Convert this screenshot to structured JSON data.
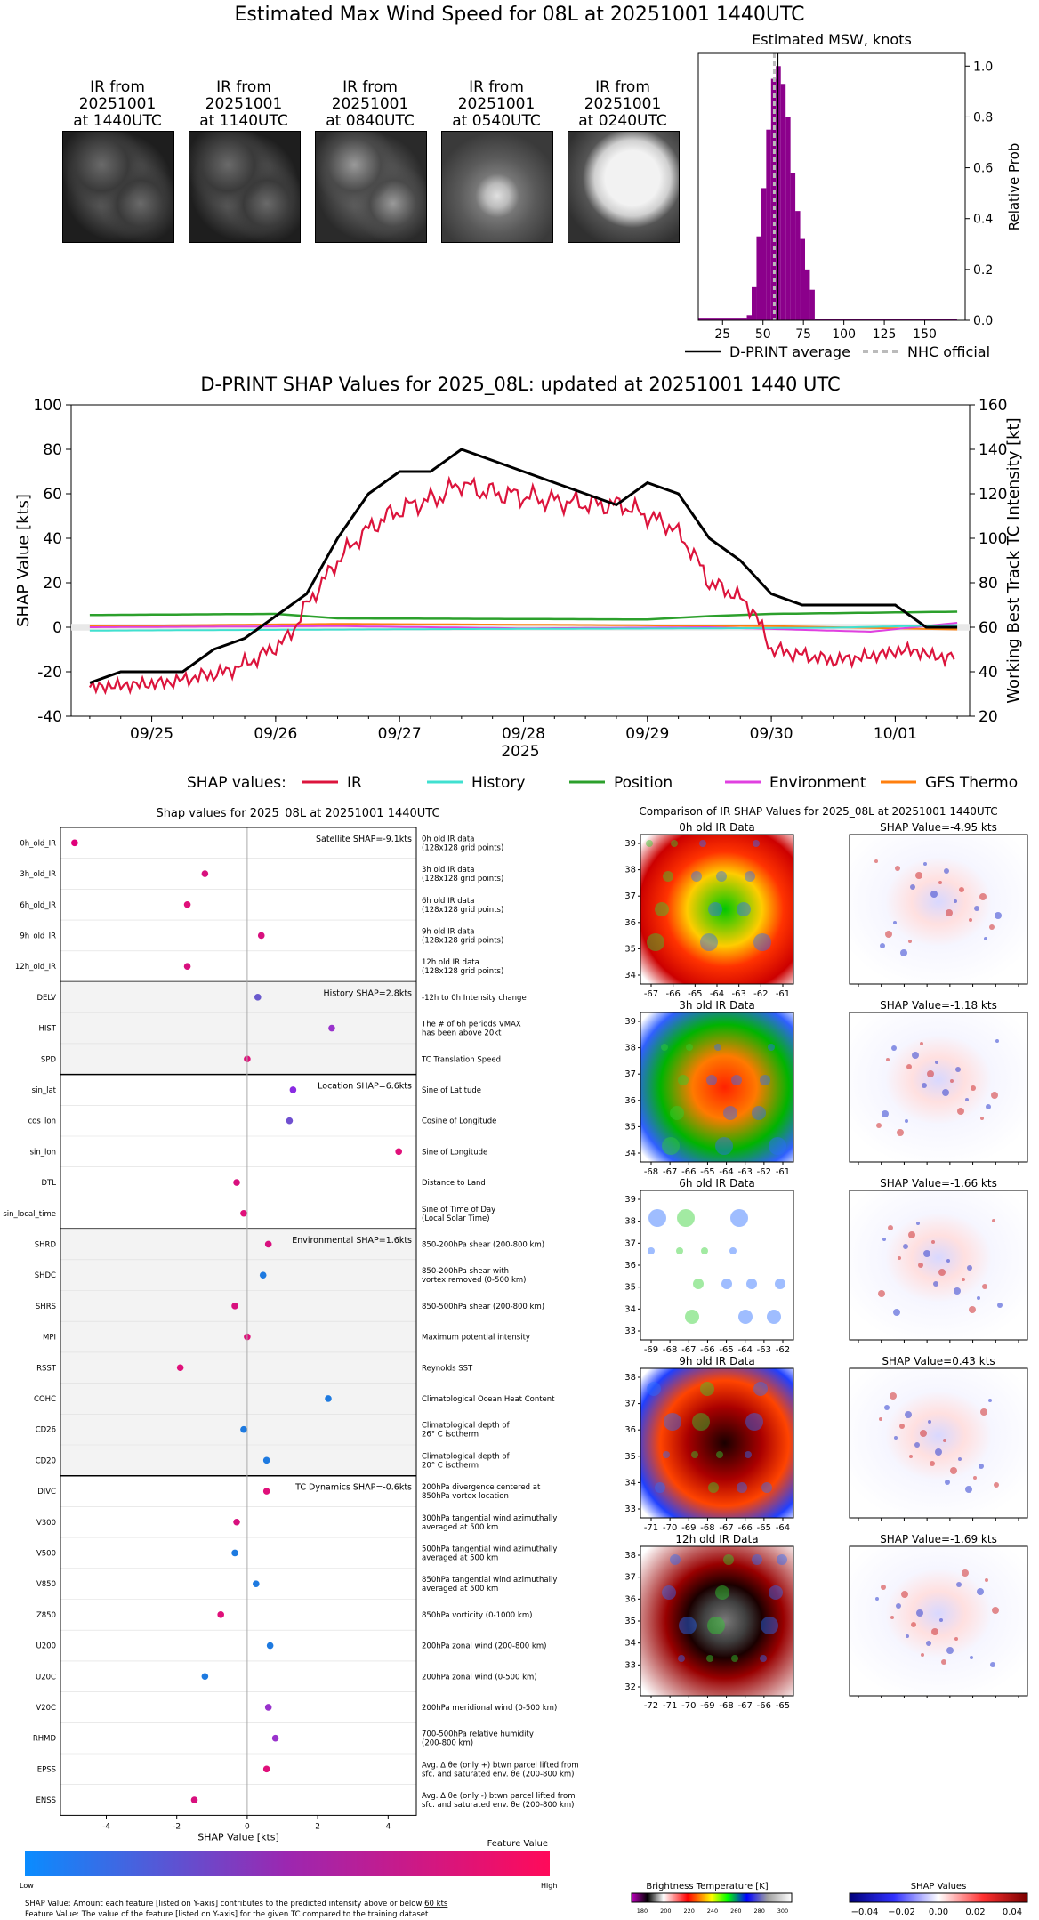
{
  "main_title": "Estimated Max Wind Speed for 08L at 20251001 1440UTC",
  "ir_panels": [
    {
      "title": "IR from\n20251001\nat 1440UTC",
      "tone": "dark"
    },
    {
      "title": "IR from\n20251001\nat 1140UTC",
      "tone": "dark"
    },
    {
      "title": "IR from\n20251001\nat 0840UTC",
      "tone": "mid"
    },
    {
      "title": "IR from\n20251001\nat 0540UTC",
      "tone": "light"
    },
    {
      "title": "IR from\n20251001\nat 0240UTC",
      "tone": "bright"
    }
  ],
  "msw_hist": {
    "title": "Estimated MSW, knots",
    "ylabel": "Relative Prob",
    "xticks": [
      "25",
      "50",
      "75",
      "100",
      "125",
      "150"
    ],
    "yticks": [
      "0.0",
      "0.2",
      "0.4",
      "0.6",
      "0.8",
      "1.0"
    ],
    "legend": {
      "dprint": "D-PRINT average",
      "nhc": "NHC official"
    },
    "bars": [
      [
        10,
        40,
        0.01
      ],
      [
        40,
        43,
        0.02
      ],
      [
        43,
        46,
        0.13
      ],
      [
        46,
        49,
        0.33
      ],
      [
        49,
        52,
        0.52
      ],
      [
        52,
        55,
        0.75
      ],
      [
        55,
        58,
        0.95
      ],
      [
        58,
        61,
        1.0
      ],
      [
        61,
        64,
        0.93
      ],
      [
        64,
        67,
        0.8
      ],
      [
        67,
        70,
        0.58
      ],
      [
        70,
        73,
        0.43
      ],
      [
        73,
        76,
        0.32
      ],
      [
        76,
        79,
        0.2
      ],
      [
        79,
        82,
        0.12
      ],
      [
        82,
        170,
        0.005
      ]
    ],
    "dprint_avg": 59,
    "nhc": 57,
    "xlim": [
      10,
      175
    ],
    "ylim": [
      0,
      1.05
    ]
  },
  "chart_data": {
    "type": "line",
    "title": "D-PRINT SHAP Values for 2025_08L: updated at 20251001 1440 UTC",
    "xlabel": "2025",
    "ylabel": "SHAP Value [kts]",
    "y2label": "Working Best Track TC Intensity [kt]",
    "xticks": [
      "09/25",
      "09/26",
      "09/27",
      "09/28",
      "09/29",
      "09/30",
      "10/01"
    ],
    "yticks": [
      "-40",
      "-20",
      "0",
      "20",
      "40",
      "60",
      "80",
      "100"
    ],
    "y2ticks": [
      "20",
      "40",
      "60",
      "80",
      "100",
      "120",
      "140",
      "160"
    ],
    "ylim": [
      -40,
      100
    ],
    "y2lim": [
      20,
      160
    ],
    "legend_label": "SHAP values:",
    "series": [
      {
        "name": "IR",
        "color": "#dc143c"
      },
      {
        "name": "History",
        "color": "#40e0d0"
      },
      {
        "name": "Position",
        "color": "#2ca02c"
      },
      {
        "name": "Environment",
        "color": "#e040e0"
      },
      {
        "name": "GFS Thermo",
        "color": "#ff7f0e"
      },
      {
        "name": "TC Intensity",
        "color": "#000000"
      }
    ],
    "tc_intensity": [
      [
        0,
        35
      ],
      [
        0.25,
        40
      ],
      [
        0.75,
        40
      ],
      [
        1,
        50
      ],
      [
        1.25,
        55
      ],
      [
        1.5,
        65
      ],
      [
        1.75,
        75
      ],
      [
        2,
        100
      ],
      [
        2.25,
        120
      ],
      [
        2.5,
        130
      ],
      [
        2.75,
        130
      ],
      [
        3,
        140
      ],
      [
        3.25,
        135
      ],
      [
        3.5,
        130
      ],
      [
        3.75,
        125
      ],
      [
        4,
        120
      ],
      [
        4.25,
        115
      ],
      [
        4.5,
        125
      ],
      [
        4.75,
        120
      ],
      [
        5,
        100
      ],
      [
        5.25,
        90
      ],
      [
        5.5,
        75
      ],
      [
        5.75,
        70
      ],
      [
        6,
        70
      ],
      [
        6.25,
        70
      ],
      [
        6.5,
        70
      ],
      [
        6.75,
        60
      ],
      [
        7,
        60
      ]
    ],
    "ir_anchor": [
      [
        0,
        -27
      ],
      [
        0.3,
        -26
      ],
      [
        0.6,
        -25
      ],
      [
        0.9,
        -22
      ],
      [
        1.1,
        -20
      ],
      [
        1.35,
        -14
      ],
      [
        1.6,
        -5
      ],
      [
        1.75,
        10
      ],
      [
        2.0,
        30
      ],
      [
        2.2,
        42
      ],
      [
        2.4,
        50
      ],
      [
        2.6,
        55
      ],
      [
        2.8,
        58
      ],
      [
        3.0,
        65
      ],
      [
        3.1,
        62
      ],
      [
        3.3,
        60
      ],
      [
        3.5,
        59
      ],
      [
        3.7,
        57
      ],
      [
        3.9,
        56
      ],
      [
        4.1,
        55
      ],
      [
        4.3,
        55
      ],
      [
        4.5,
        50
      ],
      [
        4.7,
        45
      ],
      [
        4.85,
        35
      ],
      [
        5.0,
        20
      ],
      [
        5.2,
        15
      ],
      [
        5.35,
        8
      ],
      [
        5.5,
        -10
      ],
      [
        5.7,
        -12
      ],
      [
        6.0,
        -15
      ],
      [
        6.3,
        -13
      ],
      [
        6.6,
        -10
      ],
      [
        6.9,
        -14
      ],
      [
        7.0,
        -12
      ]
    ],
    "position": [
      [
        0,
        5.5
      ],
      [
        1.5,
        6
      ],
      [
        2,
        4
      ],
      [
        4.5,
        3.5
      ],
      [
        5,
        5
      ],
      [
        5.5,
        6
      ],
      [
        7,
        7
      ]
    ],
    "history": [
      [
        0,
        -1.5
      ],
      [
        3,
        -0.8
      ],
      [
        5,
        -0.5
      ],
      [
        6,
        -0.2
      ],
      [
        7,
        1
      ]
    ],
    "environment": [
      [
        0,
        0
      ],
      [
        2,
        0.5
      ],
      [
        3.5,
        -0.5
      ],
      [
        5,
        0
      ],
      [
        6.3,
        -2
      ],
      [
        7,
        2
      ]
    ],
    "gfs_thermo": [
      [
        0,
        0.5
      ],
      [
        2,
        1.5
      ],
      [
        4,
        1
      ],
      [
        5.5,
        0.5
      ],
      [
        7,
        -1
      ]
    ],
    "xlim": [
      -0.15,
      7.1
    ]
  },
  "shap_panel": {
    "title": "Shap values for 2025_08L at 20251001 1440UTC",
    "xlabel": "SHAP Value [kts]",
    "xticks": [
      "-4",
      "-2",
      "0",
      "2",
      "4"
    ],
    "xlim": [
      -5.3,
      4.8
    ],
    "groups": [
      {
        "label": "Satellite SHAP=-9.1kts",
        "shade": false,
        "rows": [
          {
            "name": "0h_old_IR",
            "value": -4.9,
            "color": "#e0007a",
            "desc": "0h old IR data\n(128x128 grid points)"
          },
          {
            "name": "3h_old_IR",
            "value": -1.2,
            "color": "#d8107e",
            "desc": "3h old IR data\n(128x128 grid points)"
          },
          {
            "name": "6h_old_IR",
            "value": -1.7,
            "color": "#e0107a",
            "desc": "6h old IR data\n(128x128 grid points)"
          },
          {
            "name": "9h_old_IR",
            "value": 0.4,
            "color": "#d8107e",
            "desc": "9h old IR data\n(128x128 grid points)"
          },
          {
            "name": "12h_old_IR",
            "value": -1.7,
            "color": "#d8107e",
            "desc": "12h old IR data\n(128x128 grid points)"
          }
        ]
      },
      {
        "label": "History SHAP=2.8kts",
        "shade": true,
        "rows": [
          {
            "name": "DELV",
            "value": 0.3,
            "color": "#6a5acd",
            "desc": "-12h to 0h Intensity change"
          },
          {
            "name": "HIST",
            "value": 2.4,
            "color": "#9932cc",
            "desc": "The # of 6h periods VMAX\nhas been above 20kt"
          },
          {
            "name": "SPD",
            "value": 0.0,
            "color": "#e0107a",
            "desc": "TC Translation Speed"
          }
        ]
      },
      {
        "label": "Location SHAP=6.6kts",
        "shade": false,
        "rows": [
          {
            "name": "sin_lat",
            "value": 1.3,
            "color": "#8a2be2",
            "desc": "Sine of Latitude"
          },
          {
            "name": "cos_lon",
            "value": 1.2,
            "color": "#7050d0",
            "desc": "Cosine of Longitude"
          },
          {
            "name": "sin_lon",
            "value": 4.3,
            "color": "#e0107a",
            "desc": "Sine of Longitude"
          },
          {
            "name": "DTL",
            "value": -0.3,
            "color": "#d8107e",
            "desc": "Distance to Land"
          },
          {
            "name": "sin_local_time",
            "value": -0.1,
            "color": "#e0107a",
            "desc": "Sine of Time of Day\n(Local Solar Time)"
          }
        ]
      },
      {
        "label": "Environmental SHAP=1.6kts",
        "shade": true,
        "rows": [
          {
            "name": "SHRD",
            "value": 0.6,
            "color": "#d8107e",
            "desc": "850-200hPa shear (200-800 km)"
          },
          {
            "name": "SHDC",
            "value": 0.45,
            "color": "#1e7ae0",
            "desc": "850-200hPa shear with\nvortex removed (0-500 km)"
          },
          {
            "name": "SHRS",
            "value": -0.35,
            "color": "#d8107e",
            "desc": "850-500hPa shear (200-800 km)"
          },
          {
            "name": "MPI",
            "value": 0.0,
            "color": "#e0107a",
            "desc": "Maximum potential intensity"
          },
          {
            "name": "RSST",
            "value": -1.9,
            "color": "#e0107a",
            "desc": "Reynolds SST"
          },
          {
            "name": "COHC",
            "value": 2.3,
            "color": "#1e7ae0",
            "desc": "Climatological Ocean Heat Content"
          },
          {
            "name": "CD26",
            "value": -0.1,
            "color": "#1e7ae0",
            "desc": "Climatological depth of\n26° C isotherm"
          },
          {
            "name": "CD20",
            "value": 0.55,
            "color": "#1e7ae0",
            "desc": "Climatological depth of\n20° C isotherm"
          }
        ]
      },
      {
        "label": "TC Dynamics SHAP=-0.6kts",
        "shade": false,
        "rows": [
          {
            "name": "DIVC",
            "value": 0.55,
            "color": "#e0107a",
            "desc": "200hPa divergence centered at\n850hPa vortex location"
          },
          {
            "name": "V300",
            "value": -0.3,
            "color": "#d8107e",
            "desc": "300hPa tangential wind azimuthally\naveraged at 500 km"
          },
          {
            "name": "V500",
            "value": -0.35,
            "color": "#1e7ae0",
            "desc": "500hPa tangential wind azimuthally\naveraged at 500 km"
          },
          {
            "name": "V850",
            "value": 0.25,
            "color": "#1e7ae0",
            "desc": "850hPa tangential wind azimuthally\naveraged at 500 km"
          },
          {
            "name": "Z850",
            "value": -0.75,
            "color": "#e0107a",
            "desc": "850hPa vorticity (0-1000 km)"
          },
          {
            "name": "U200",
            "value": 0.65,
            "color": "#1e7ae0",
            "desc": "200hPa zonal wind (200-800 km)"
          },
          {
            "name": "U20C",
            "value": -1.2,
            "color": "#1e7ae0",
            "desc": "200hPa zonal wind (0-500 km)"
          },
          {
            "name": "V20C",
            "value": 0.6,
            "color": "#9932cc",
            "desc": "200hPa meridional wind (0-500 km)"
          },
          {
            "name": "RHMD",
            "value": 0.8,
            "color": "#9932cc",
            "desc": "700-500hPa relative humidity\n(200-800 km)"
          },
          {
            "name": "EPSS",
            "value": 0.55,
            "color": "#e0107a",
            "desc": "Avg. Δ θe (only +) btwn parcel lifted from\nsfc. and saturated env. θe (200-800 km)"
          },
          {
            "name": "ENSS",
            "value": -1.5,
            "color": "#d8107e",
            "desc": "Avg. Δ θe (only -) btwn parcel lifted from\nsfc. and saturated env. θe (200-800 km)"
          }
        ]
      }
    ],
    "colorbar": {
      "title": "Feature Value",
      "low": "Low",
      "high": "High"
    },
    "footnote1": "SHAP Value: Amount each feature [listed on Y-axis] contributes to the predicted intensity above or below ",
    "footnote1_link": "60 kts",
    "footnote2": "Feature Value: The value of the feature [listed on Y-axis] for the given TC compared to the training dataset"
  },
  "ir_compare": {
    "title": "Comparison of IR SHAP Values for 2025_08L at 20251001 1440UTC",
    "rows": [
      {
        "ir_title": "0h old IR Data",
        "shap_title": "SHAP Value=-4.95 kts",
        "xticks": [
          "-67",
          "-66",
          "-65",
          "-64",
          "-63",
          "-62",
          "-61"
        ],
        "yticks": [
          "39",
          "38",
          "37",
          "36",
          "35",
          "34"
        ],
        "style": "a"
      },
      {
        "ir_title": "3h old IR Data",
        "shap_title": "SHAP Value=-1.18 kts",
        "xticks": [
          "-68",
          "-67",
          "-66",
          "-65",
          "-64",
          "-63",
          "-62",
          "-61"
        ],
        "yticks": [
          "39",
          "38",
          "37",
          "36",
          "35",
          "34"
        ],
        "style": "b"
      },
      {
        "ir_title": "6h old IR Data",
        "shap_title": "SHAP Value=-1.66 kts",
        "xticks": [
          "-69",
          "-68",
          "-67",
          "-66",
          "-65",
          "-64",
          "-63",
          "-62"
        ],
        "yticks": [
          "39",
          "38",
          "37",
          "36",
          "35",
          "34",
          "33"
        ],
        "style": "c"
      },
      {
        "ir_title": "9h old IR Data",
        "shap_title": "SHAP Value=0.43 kts",
        "xticks": [
          "-71",
          "-70",
          "-69",
          "-68",
          "-67",
          "-66",
          "-65",
          "-64"
        ],
        "yticks": [
          "38",
          "37",
          "36",
          "35",
          "34",
          "33"
        ],
        "style": "d"
      },
      {
        "ir_title": "12h old IR Data",
        "shap_title": "SHAP Value=-1.69 kts",
        "xticks": [
          "-72",
          "-71",
          "-70",
          "-69",
          "-68",
          "-67",
          "-66",
          "-65"
        ],
        "yticks": [
          "38",
          "37",
          "36",
          "35",
          "34",
          "33",
          "32"
        ],
        "style": "e"
      }
    ],
    "bt_colorbar": {
      "label": "Brightness Temperature [K]",
      "ticks": [
        "180",
        "200",
        "220",
        "240",
        "260",
        "280",
        "300"
      ]
    },
    "shap_colorbar": {
      "label": "SHAP Values",
      "ticks": [
        "−0.04",
        "−0.02",
        "0.00",
        "0.02",
        "0.04"
      ]
    }
  }
}
